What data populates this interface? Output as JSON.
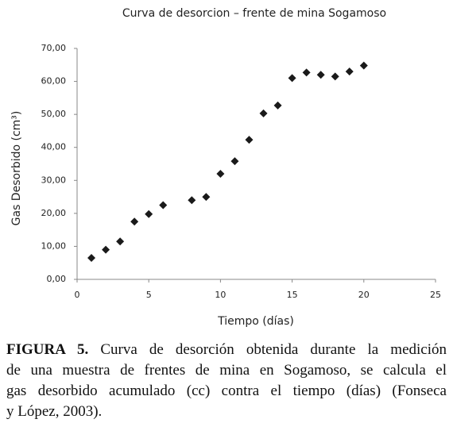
{
  "chart_data": {
    "type": "scatter",
    "title": "Curva de desorcion – frente de mina Sogamoso",
    "x_label": "Tiempo (días)",
    "y_label": "Gas Desorbido (cm³)",
    "series": [
      {
        "name": "Gas desorbido",
        "color": "#1a1a1a",
        "x": [
          1,
          2,
          3,
          4,
          5,
          6,
          8,
          9,
          10,
          11,
          12,
          13,
          14,
          15,
          16,
          17,
          18,
          19,
          20
        ],
        "values": [
          6.5,
          9,
          11.5,
          17.5,
          19.8,
          22.5,
          24,
          25,
          32,
          35.8,
          42.3,
          50.3,
          52.7,
          61,
          62.7,
          62,
          61.5,
          63,
          64.8
        ]
      }
    ],
    "xlim": [
      0,
      25
    ],
    "xticks": [
      0,
      5,
      10,
      15,
      20,
      25
    ],
    "ylim": [
      0,
      70
    ],
    "yticks": [
      {
        "value": 0,
        "label": "0,00"
      },
      {
        "value": 10,
        "label": "10,00"
      },
      {
        "value": 20,
        "label": "20,00"
      },
      {
        "value": 30,
        "label": "30,00"
      },
      {
        "value": 40,
        "label": "40,00"
      },
      {
        "value": 50,
        "label": "50,00"
      },
      {
        "value": 60,
        "label": "60,00"
      },
      {
        "value": 70,
        "label": "70,00"
      }
    ],
    "grid": false
  },
  "caption": {
    "label": "FIGURA 5.",
    "lines": [
      "Curva de desorción obtenida durante la medición",
      "de una muestra de frentes de mina en Sogamoso, se calcula el",
      "gas desorbido acumulado (cc) contra el tiempo (días) (Fonseca",
      "y López, 2003)."
    ]
  }
}
